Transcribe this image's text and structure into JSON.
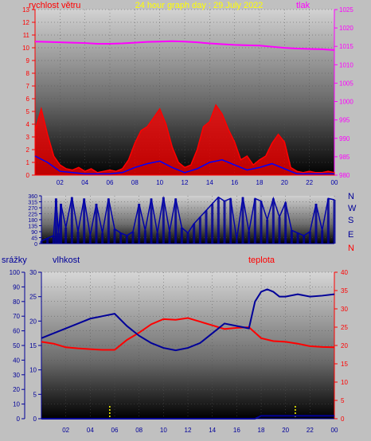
{
  "chart_data": [
    {
      "type": "line",
      "title": "24 hour graph day : 29.July 2022",
      "left_axis_label": "rychlost větru",
      "right_axis_label": "tlak",
      "ylim_left": [
        0,
        13
      ],
      "left_ticks": [
        "0",
        "1",
        "2",
        "3",
        "4",
        "5",
        "6",
        "7",
        "8",
        "9",
        "10",
        "11",
        "12",
        "13"
      ],
      "ylim_right": [
        980,
        1025
      ],
      "right_ticks": [
        "980",
        "985",
        "990",
        "995",
        "1000",
        "1005",
        "1010",
        "1015",
        "1020",
        "1025"
      ],
      "xlim": [
        0,
        24
      ],
      "x_ticks": [
        "02",
        "04",
        "06",
        "08",
        "10",
        "12",
        "14",
        "16",
        "18",
        "20",
        "22",
        "00"
      ],
      "series": [
        {
          "name": "tlak",
          "color": "#ff00ff",
          "x": [
            0,
            1,
            2,
            3,
            4,
            5,
            6,
            7,
            8,
            9,
            10,
            11,
            12,
            13,
            14,
            15,
            16,
            17,
            18,
            19,
            20,
            21,
            22,
            23,
            24
          ],
          "y": [
            1016.3,
            1016.2,
            1016.1,
            1016.0,
            1015.9,
            1015.7,
            1015.7,
            1015.8,
            1016.0,
            1016.2,
            1016.3,
            1016.4,
            1016.3,
            1016.1,
            1015.8,
            1015.6,
            1015.4,
            1015.3,
            1015.2,
            1014.9,
            1014.6,
            1014.4,
            1014.3,
            1014.2,
            1014.0
          ]
        },
        {
          "name": "rychlost větru (nárazy)",
          "color": "#ff0000",
          "x": [
            0,
            0.5,
            1,
            1.5,
            2,
            2.5,
            3,
            3.5,
            4,
            4.5,
            5,
            5.5,
            6,
            6.5,
            7,
            7.5,
            8,
            8.5,
            9,
            9.5,
            10,
            10.5,
            11,
            11.5,
            12,
            12.5,
            13,
            13.5,
            14,
            14.5,
            15,
            15.5,
            16,
            16.5,
            17,
            17.5,
            18,
            18.5,
            19,
            19.5,
            20,
            20.5,
            21,
            21.5,
            22,
            22.5,
            23,
            23.5,
            24
          ],
          "y": [
            3.5,
            5.2,
            3.2,
            1.5,
            0.8,
            0.5,
            0.4,
            0.6,
            0.3,
            0.5,
            0.2,
            0.3,
            0.4,
            0.3,
            0.5,
            1.2,
            2.5,
            3.5,
            3.8,
            4.5,
            5.2,
            4.0,
            2.2,
            1.0,
            0.6,
            0.8,
            2.0,
            3.8,
            4.2,
            5.5,
            4.8,
            3.6,
            2.6,
            1.2,
            1.5,
            0.8,
            1.2,
            1.5,
            2.5,
            3.2,
            2.6,
            0.6,
            0.3,
            0.2,
            0.3,
            0.2,
            0.2,
            0.3,
            0.2
          ]
        },
        {
          "name": "rychlost větru (průměr)",
          "color": "#0000ff",
          "x": [
            0,
            1,
            2,
            3,
            4,
            5,
            6,
            7,
            8,
            9,
            10,
            11,
            12,
            13,
            14,
            15,
            16,
            17,
            18,
            19,
            20,
            21,
            22,
            23,
            24
          ],
          "y": [
            1.5,
            1.0,
            0.3,
            0.2,
            0.1,
            0.1,
            0.1,
            0.2,
            0.6,
            0.9,
            1.1,
            0.6,
            0.2,
            0.5,
            1.0,
            1.2,
            0.8,
            0.4,
            0.6,
            0.9,
            0.5,
            0.1,
            0.1,
            0.1,
            0.1
          ]
        }
      ]
    },
    {
      "type": "line",
      "left_axis_label": "",
      "ylim": [
        0,
        360
      ],
      "y_ticks": [
        "0",
        "45",
        "90",
        "135",
        "180",
        "225",
        "270",
        "315",
        "360"
      ],
      "right_labels": [
        "N",
        "W",
        "S",
        "E",
        "N"
      ],
      "xlim": [
        0,
        24
      ],
      "series": [
        {
          "name": "směr větru",
          "color": "#0000aa",
          "x": [
            0,
            0.5,
            1,
            1.2,
            1.4,
            1.6,
            2,
            2.5,
            3,
            3.5,
            4,
            4.5,
            5,
            5.5,
            6,
            6.5,
            7,
            7.5,
            8,
            8.5,
            9,
            9.5,
            10,
            10.5,
            11,
            11.5,
            12,
            12.5,
            13,
            13.5,
            14,
            14.5,
            15,
            15.5,
            16,
            16.5,
            17,
            17.5,
            18,
            18.5,
            19,
            19.5,
            20,
            20.5,
            21,
            21.5,
            22,
            22.5,
            23,
            23.5,
            24
          ],
          "y": [
            20,
            40,
            60,
            340,
            80,
            300,
            120,
            350,
            90,
            340,
            60,
            300,
            80,
            340,
            110,
            80,
            60,
            90,
            300,
            100,
            340,
            80,
            350,
            90,
            340,
            120,
            80,
            150,
            200,
            250,
            300,
            350,
            320,
            340,
            30,
            350,
            90,
            340,
            320,
            180,
            340,
            200,
            310,
            100,
            80,
            60,
            90,
            300,
            100,
            340,
            330
          ]
        }
      ]
    },
    {
      "type": "line",
      "left_axis_label": "srážky",
      "left_axis_label_2": "vlhkost",
      "right_axis_label": "teplota",
      "ylim_precip": [
        0,
        100
      ],
      "precip_ticks": [
        "0",
        "10",
        "20",
        "30",
        "40",
        "50",
        "60",
        "70",
        "80",
        "90",
        "100"
      ],
      "ylim_humidity": [
        0,
        30
      ],
      "humidity_ticks": [
        "0",
        "5",
        "10",
        "15",
        "20",
        "25",
        "30"
      ],
      "ylim_temp": [
        0,
        40
      ],
      "temp_ticks": [
        "0",
        "5",
        "10",
        "15",
        "20",
        "25",
        "30",
        "35",
        "40"
      ],
      "xlim": [
        0,
        24
      ],
      "x_ticks": [
        "02",
        "04",
        "06",
        "08",
        "10",
        "12",
        "14",
        "16",
        "18",
        "20",
        "22",
        "00"
      ],
      "series": [
        {
          "name": "teplota",
          "color": "#ff0000",
          "x": [
            0,
            1,
            2,
            3,
            4,
            5,
            6,
            7,
            8,
            9,
            10,
            11,
            12,
            13,
            14,
            15,
            16,
            17,
            18,
            19,
            20,
            21,
            22,
            23,
            24
          ],
          "y": [
            21,
            20.5,
            19.5,
            19.2,
            19,
            18.8,
            18.8,
            21.5,
            23.5,
            25.8,
            27.2,
            27.0,
            27.5,
            26.5,
            25.5,
            24.5,
            24.8,
            25.0,
            22,
            21.2,
            21.0,
            20.5,
            19.8,
            19.6,
            19.5
          ]
        },
        {
          "name": "vlhkost",
          "color": "#000099",
          "x": [
            0,
            1,
            2,
            3,
            4,
            5,
            6,
            7,
            8,
            9,
            10,
            11,
            12,
            13,
            14,
            15,
            16,
            17,
            17.5,
            18,
            18.5,
            19,
            19.5,
            20,
            21,
            22,
            23,
            24
          ],
          "y": [
            16.5,
            17.5,
            18.5,
            19.5,
            20.5,
            21.0,
            21.5,
            19.0,
            17.0,
            15.5,
            14.5,
            14.0,
            14.5,
            15.5,
            17.5,
            19.5,
            19.0,
            18.5,
            24.0,
            26.0,
            26.5,
            26.0,
            25.0,
            25.0,
            25.5,
            25.0,
            25.2,
            25.5
          ]
        },
        {
          "name": "srážky",
          "color": "#000099",
          "x": [
            0,
            17.5,
            18.0,
            24
          ],
          "y": [
            0,
            0,
            2,
            2
          ]
        }
      ],
      "markers": {
        "color": "#ffff00",
        "x": [
          5.6,
          20.8
        ]
      }
    }
  ]
}
